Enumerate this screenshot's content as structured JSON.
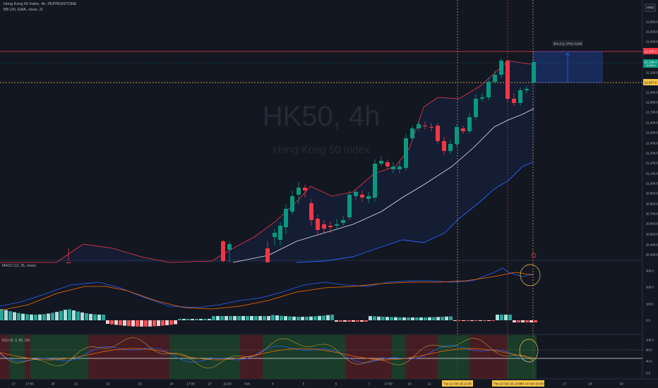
{
  "header": {
    "title": "Hong Kong 50 Index, 4h, PEPPERSTONE",
    "indicator_bb": "BB (20, EMA, close, 2)",
    "currency_button": "HKD"
  },
  "watermark": {
    "symbol": "HK50, 4h",
    "name": "Hong Kong 50 Index"
  },
  "price_axis": {
    "ticks": [
      "22,600.0",
      "22,500.0",
      "22,400.0",
      "22,300.0",
      "22,200.0",
      "22,100.0",
      "21,900.0",
      "21,800.0",
      "21,700.0",
      "21,600.0",
      "21,500.0",
      "21,400.0",
      "21,300.0",
      "21,200.0",
      "21,100.0",
      "21,000.0",
      "20,900.0",
      "20,800.0",
      "20,700.0",
      "20,600.0",
      "20,500.0",
      "20,400.0",
      "20,300.0"
    ],
    "label_resistance": "22,303.2",
    "label_current_price": "22,199.4",
    "label_current_sub": "22,199.4",
    "label_dashed": "22,057.8"
  },
  "measure_tool": {
    "label": "301.8 (1.37%) 3,018"
  },
  "macd": {
    "title": "MACD (12, 26, close)",
    "axis": [
      "300.0",
      "200.0",
      "100.0",
      "0.0"
    ]
  },
  "kdj": {
    "title": "KDJ (9, 3, 80, 20)",
    "axis": [
      "100.0",
      "80.0",
      "40.0",
      "0.0"
    ]
  },
  "time_axis": {
    "ticks": [
      "17",
      "17:00",
      "20",
      "21",
      "22",
      "23",
      "24",
      "17:00",
      "27",
      "21:00",
      "Feb",
      "4",
      "5",
      "6",
      "7",
      "17:00",
      "10",
      "11",
      "17",
      "18",
      "19"
    ],
    "highlight_1": "Tue 11 Feb '25  21:00",
    "highlight_2": "Thu 13 Feb '25  13:00",
    "highlight_3": "Fri 14 Feb '25  09:00"
  },
  "colors": {
    "background": "#131722",
    "up": "#089981",
    "down": "#f23645",
    "bb_band": "#f23645",
    "bb_lower": "#2962ff",
    "basis": "#e0e3eb",
    "macd_line": "#2962ff",
    "signal_line": "#ff6d00",
    "hist_up": "#26a69a",
    "hist_up_light": "#b2dfdb",
    "hist_down": "#ff5252",
    "hist_down_light": "#ffcdd2",
    "highlight": "#f7c548",
    "kdj_green": "#1e4d2b",
    "kdj_red": "#5c1f24"
  }
}
